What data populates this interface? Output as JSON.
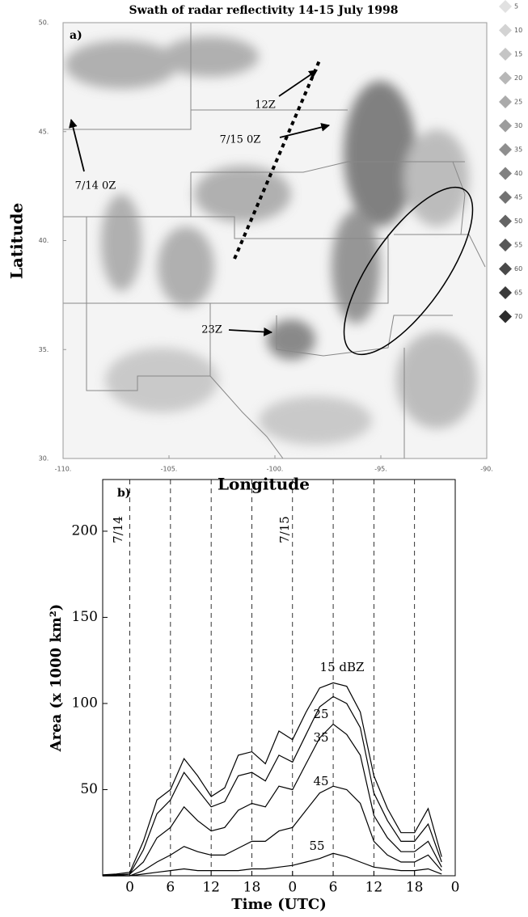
{
  "chart_data": [
    {
      "type": "map",
      "title": "Swath of radar reflectivity 14-15 July 1998",
      "panel_label": "a)",
      "xlabel": "Longitude",
      "ylabel": "Latitude",
      "xlim": [
        -110,
        -90
      ],
      "ylim": [
        30,
        50
      ],
      "xticks": [
        {
          "value": -110,
          "label": "-110."
        },
        {
          "value": -105,
          "label": "-105."
        },
        {
          "value": -100,
          "label": "-100."
        },
        {
          "value": -95,
          "label": "-95."
        },
        {
          "value": -90,
          "label": "-90."
        }
      ],
      "yticks": [
        {
          "value": 50,
          "label": "50."
        },
        {
          "value": 45,
          "label": "45."
        },
        {
          "value": 40,
          "label": "40."
        },
        {
          "value": 35,
          "label": "35."
        },
        {
          "value": 30,
          "label": "30."
        }
      ],
      "colorbar": [
        5,
        10,
        15,
        20,
        25,
        30,
        35,
        40,
        45,
        50,
        55,
        60,
        65,
        70
      ],
      "annotations": [
        "12Z",
        "7/15 0Z",
        "7/14 0Z",
        "23Z"
      ]
    },
    {
      "type": "line",
      "panel_label": "b)",
      "xlabel": "Time (UTC)",
      "ylabel": "Area (x 1000 km²)",
      "annotations": [
        "7/14",
        "7/15"
      ],
      "xlim": [
        -4,
        48
      ],
      "ylim": [
        0,
        230
      ],
      "xticks": [
        0,
        6,
        12,
        18,
        {
          "value": 24,
          "label": "0"
        },
        {
          "value": 30,
          "label": "6"
        },
        {
          "value": 36,
          "label": "12"
        },
        {
          "value": 42,
          "label": "18"
        },
        {
          "value": 48,
          "label": "0"
        }
      ],
      "yticks": [
        50,
        100,
        150,
        200
      ],
      "grid": true,
      "x": [
        -4,
        -2,
        0,
        2,
        4,
        6,
        8,
        10,
        12,
        14,
        16,
        18,
        20,
        22,
        24,
        26,
        28,
        30,
        32,
        34,
        36,
        38,
        40,
        42,
        44,
        46
      ],
      "series": [
        {
          "name": "15 dBZ",
          "color": "#000000",
          "values": [
            0.5,
            1,
            2,
            20,
            44,
            50,
            68,
            58,
            46,
            51,
            70,
            72,
            65,
            84,
            79,
            95,
            109,
            112,
            110,
            95,
            58,
            39,
            25,
            25,
            39,
            11
          ]
        },
        {
          "name": "25",
          "color": "#000000",
          "values": [
            0,
            0.5,
            1,
            15,
            36,
            44,
            60,
            50,
            40,
            43,
            58,
            60,
            55,
            70,
            66,
            82,
            98,
            104,
            100,
            86,
            48,
            32,
            20,
            20,
            30,
            8
          ]
        },
        {
          "name": "35",
          "color": "#000000",
          "values": [
            0,
            0,
            1,
            8,
            22,
            28,
            40,
            32,
            26,
            28,
            38,
            42,
            40,
            52,
            50,
            65,
            80,
            88,
            82,
            70,
            35,
            22,
            14,
            14,
            20,
            5
          ]
        },
        {
          "name": "45",
          "color": "#000000",
          "values": [
            0,
            0,
            0,
            3,
            8,
            12,
            17,
            14,
            12,
            12,
            16,
            20,
            20,
            26,
            28,
            38,
            48,
            52,
            50,
            42,
            20,
            12,
            8,
            8,
            12,
            3
          ]
        },
        {
          "name": "55",
          "color": "#000000",
          "values": [
            0,
            0,
            0,
            1,
            2,
            3,
            4,
            3,
            3,
            3,
            3,
            4,
            4,
            5,
            6,
            8,
            10,
            13,
            11,
            8,
            5,
            4,
            3,
            3,
            4,
            1
          ]
        }
      ]
    }
  ]
}
